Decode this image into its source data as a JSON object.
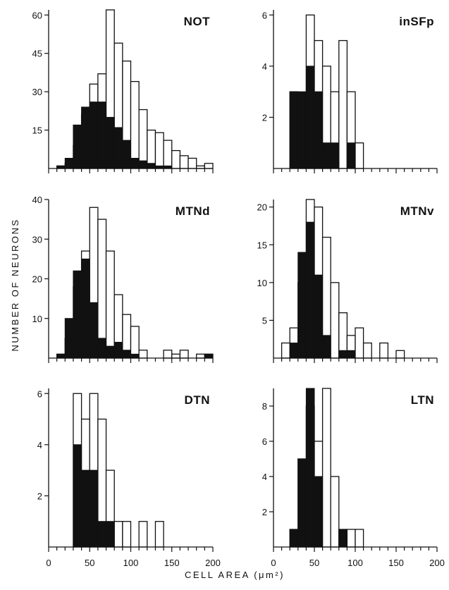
{
  "figure": {
    "xlabel": "CELL AREA (μm²)",
    "ylabel": "NUMBER OF NEURONS"
  },
  "chart_data": [
    {
      "type": "bar",
      "panel": "NOT",
      "title": "NOT",
      "xlabel": "CELL AREA (μm²)",
      "ylabel": "NUMBER OF NEURONS",
      "bin_width": 10,
      "xlim": [
        0,
        200
      ],
      "ylim": [
        0,
        62
      ],
      "yticks": [
        15,
        30,
        45,
        60
      ],
      "xticks": [
        0,
        50,
        100,
        150,
        200
      ],
      "bin_starts": [
        10,
        20,
        30,
        40,
        50,
        60,
        70,
        80,
        90,
        100,
        110,
        120,
        130,
        140,
        150,
        160,
        170,
        180,
        190
      ],
      "series": [
        {
          "fill": "open",
          "values": [
            1,
            2,
            9,
            21,
            33,
            37,
            62,
            49,
            42,
            34,
            23,
            15,
            14,
            11,
            7,
            5,
            4,
            1,
            2
          ]
        },
        {
          "fill": "filled",
          "values": [
            1,
            4,
            17,
            24,
            26,
            26,
            20,
            16,
            11,
            4,
            3,
            2,
            1,
            1,
            0,
            0,
            0,
            0,
            0
          ]
        }
      ]
    },
    {
      "type": "bar",
      "panel": "inSFp",
      "title": "inSFp",
      "bin_width": 10,
      "xlim": [
        0,
        200
      ],
      "ylim": [
        0,
        6.2
      ],
      "yticks": [
        2,
        4,
        6
      ],
      "xticks": [
        0,
        50,
        100,
        150,
        200
      ],
      "bin_starts": [
        20,
        30,
        40,
        50,
        60,
        70,
        80,
        90,
        100
      ],
      "series": [
        {
          "fill": "open",
          "values": [
            3,
            2,
            6,
            5,
            4,
            3,
            5,
            3,
            1
          ]
        },
        {
          "fill": "filled",
          "values": [
            3,
            3,
            4,
            3,
            1,
            1,
            0,
            1,
            0
          ]
        }
      ]
    },
    {
      "type": "bar",
      "panel": "MTNd",
      "title": "MTNd",
      "bin_width": 10,
      "xlim": [
        0,
        200
      ],
      "ylim": [
        0,
        40
      ],
      "yticks": [
        10,
        20,
        30,
        40
      ],
      "xticks": [
        0,
        50,
        100,
        150,
        200
      ],
      "bin_starts": [
        10,
        20,
        30,
        40,
        50,
        60,
        70,
        80,
        90,
        100,
        110,
        120,
        130,
        140,
        150,
        160,
        170,
        180,
        190
      ],
      "series": [
        {
          "fill": "open",
          "values": [
            1,
            5,
            18,
            27,
            38,
            35,
            27,
            16,
            11,
            8,
            2,
            0,
            0,
            2,
            1,
            2,
            0,
            1,
            1
          ]
        },
        {
          "fill": "filled",
          "values": [
            1,
            10,
            22,
            25,
            14,
            5,
            3,
            4,
            2,
            1,
            0,
            0,
            0,
            0,
            0,
            0,
            0,
            0,
            1
          ]
        }
      ]
    },
    {
      "type": "bar",
      "panel": "MTNv",
      "title": "MTNv",
      "bin_width": 10,
      "xlim": [
        0,
        200
      ],
      "ylim": [
        0,
        21
      ],
      "yticks": [
        5,
        10,
        15,
        20
      ],
      "xticks": [
        0,
        50,
        100,
        150,
        200
      ],
      "bin_starts": [
        10,
        20,
        30,
        40,
        50,
        60,
        70,
        80,
        90,
        100,
        110,
        120,
        130,
        140,
        150
      ],
      "series": [
        {
          "fill": "open",
          "values": [
            2,
            4,
            10,
            21,
            20,
            16,
            10,
            6,
            3,
            4,
            2,
            0,
            2,
            0,
            1
          ]
        },
        {
          "fill": "filled",
          "values": [
            0,
            2,
            14,
            18,
            11,
            3,
            0,
            1,
            1,
            0,
            0,
            0,
            0,
            0,
            0
          ]
        }
      ]
    },
    {
      "type": "bar",
      "panel": "DTN",
      "title": "DTN",
      "bin_width": 10,
      "xlim": [
        0,
        200
      ],
      "ylim": [
        0,
        6.2
      ],
      "yticks": [
        2,
        4,
        6
      ],
      "xticks": [
        0,
        50,
        100,
        150,
        200
      ],
      "bin_starts": [
        30,
        40,
        50,
        60,
        70,
        80,
        90,
        100,
        110,
        120,
        130
      ],
      "series": [
        {
          "fill": "open",
          "values": [
            6,
            5,
            6,
            5,
            3,
            1,
            1,
            0,
            1,
            0,
            1
          ]
        },
        {
          "fill": "filled",
          "values": [
            4,
            3,
            3,
            1,
            1,
            0,
            0,
            0,
            0,
            0,
            0
          ]
        }
      ]
    },
    {
      "type": "bar",
      "panel": "LTN",
      "title": "LTN",
      "bin_width": 10,
      "xlim": [
        0,
        200
      ],
      "ylim": [
        0,
        9
      ],
      "yticks": [
        2,
        4,
        6,
        8
      ],
      "xticks": [
        0,
        50,
        100,
        150,
        200
      ],
      "bin_starts": [
        20,
        30,
        40,
        50,
        60,
        70,
        80,
        90,
        100
      ],
      "series": [
        {
          "fill": "open",
          "values": [
            1,
            5,
            8,
            6,
            9,
            4,
            1,
            1,
            1
          ]
        },
        {
          "fill": "filled",
          "values": [
            1,
            5,
            9,
            4,
            0,
            0,
            1,
            0,
            0
          ]
        }
      ]
    }
  ]
}
